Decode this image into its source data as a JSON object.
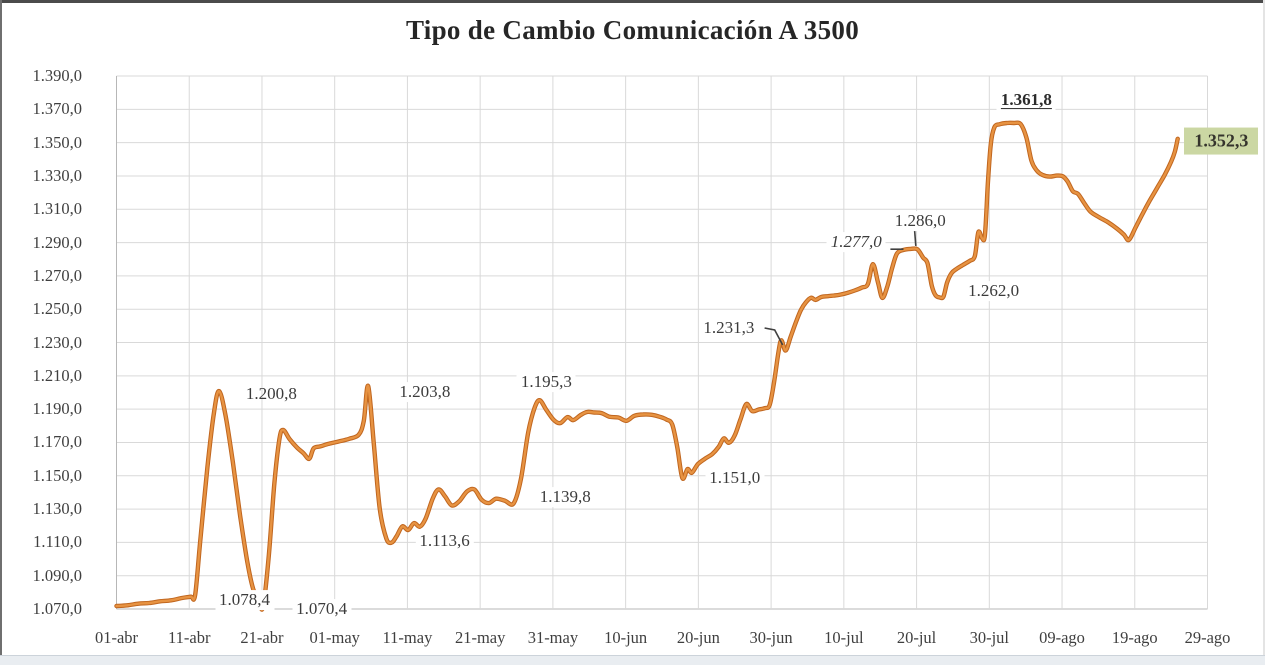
{
  "chart_data": {
    "type": "line",
    "title": "Tipo de Cambio Comunicación A 3500",
    "grid": true,
    "legend": "none",
    "colors": {
      "line": "#D9772E",
      "line_edge": "#C0661F",
      "line_core": "#E79342",
      "grid": "#D9D9D9",
      "axis": "#B7B7B7",
      "tick_text": "#3F3F3F",
      "title_text": "#262626",
      "label_text": "#3B3B3B",
      "leader": "#404040",
      "highlight_box_bg": "#CBD7A3"
    },
    "x_axis": {
      "tick_labels": [
        "01-abr",
        "11-abr",
        "21-abr",
        "01-may",
        "11-may",
        "21-may",
        "31-may",
        "10-jun",
        "20-jun",
        "30-jun",
        "10-jul",
        "20-jul",
        "30-jul",
        "09-ago",
        "19-ago",
        "29-ago"
      ],
      "tick_day_offsets": [
        0,
        10,
        20,
        30,
        40,
        50,
        60,
        70,
        80,
        90,
        100,
        110,
        120,
        130,
        140,
        150
      ],
      "day_min": 0,
      "day_max": 150
    },
    "y_axis": {
      "min": 1070,
      "max": 1390,
      "step": 20,
      "tick_labels": [
        "1.070,0",
        "1.090,0",
        "1.110,0",
        "1.130,0",
        "1.150,0",
        "1.170,0",
        "1.190,0",
        "1.210,0",
        "1.230,0",
        "1.250,0",
        "1.270,0",
        "1.290,0",
        "1.310,0",
        "1.330,0",
        "1.350,0",
        "1.370,0",
        "1.390,0"
      ]
    },
    "series": [
      {
        "smooth": true,
        "points": [
          [
            0,
            1071.8
          ],
          [
            1.5,
            1072.2
          ],
          [
            3,
            1073.2
          ],
          [
            4.5,
            1073.6
          ],
          [
            6,
            1074.6
          ],
          [
            7.5,
            1075.2
          ],
          [
            9,
            1076.6
          ],
          [
            10.2,
            1077.4
          ],
          [
            10.8,
            1078.2
          ],
          [
            11.5,
            1110
          ],
          [
            12.5,
            1155
          ],
          [
            13.4,
            1188
          ],
          [
            14.1,
            1200.8
          ],
          [
            15,
            1186
          ],
          [
            16,
            1158
          ],
          [
            17,
            1126
          ],
          [
            18,
            1098
          ],
          [
            18.8,
            1082
          ],
          [
            19.4,
            1078.4
          ],
          [
            20.1,
            1070.4
          ],
          [
            20.9,
            1100
          ],
          [
            21.7,
            1145
          ],
          [
            22.4,
            1172
          ],
          [
            22.9,
            1177.5
          ],
          [
            23.8,
            1172
          ],
          [
            24.8,
            1167
          ],
          [
            25.7,
            1163.6
          ],
          [
            26.5,
            1160.2
          ],
          [
            27.1,
            1166.4
          ],
          [
            28,
            1167.6
          ],
          [
            29.2,
            1169.2
          ],
          [
            30.6,
            1170.6
          ],
          [
            32,
            1172.2
          ],
          [
            33.3,
            1174.6
          ],
          [
            34,
            1183
          ],
          [
            34.6,
            1203.8
          ],
          [
            35.4,
            1168
          ],
          [
            36.2,
            1130
          ],
          [
            37.1,
            1112.4
          ],
          [
            37.8,
            1109.8
          ],
          [
            38.5,
            1113.6
          ],
          [
            39.3,
            1119.6
          ],
          [
            40.1,
            1117.4
          ],
          [
            40.9,
            1121.6
          ],
          [
            41.7,
            1119.4
          ],
          [
            42.5,
            1124.2
          ],
          [
            43.5,
            1136.6
          ],
          [
            44.3,
            1141.8
          ],
          [
            45.2,
            1137.4
          ],
          [
            46.1,
            1132.2
          ],
          [
            47.1,
            1134.6
          ],
          [
            48.2,
            1140.6
          ],
          [
            49.2,
            1141.8
          ],
          [
            50.2,
            1135.6
          ],
          [
            51.2,
            1133.6
          ],
          [
            52.2,
            1136.2
          ],
          [
            53.4,
            1135.0
          ],
          [
            54.6,
            1133.4
          ],
          [
            55.6,
            1148
          ],
          [
            56.6,
            1176
          ],
          [
            57.5,
            1191
          ],
          [
            58.2,
            1195.3
          ],
          [
            59.1,
            1189.5
          ],
          [
            60.1,
            1183.6
          ],
          [
            61.0,
            1181.6
          ],
          [
            62.0,
            1185.2
          ],
          [
            62.8,
            1183.4
          ],
          [
            63.8,
            1186.4
          ],
          [
            64.7,
            1188.3
          ],
          [
            65.7,
            1188.0
          ],
          [
            66.7,
            1187.6
          ],
          [
            67.8,
            1185.4
          ],
          [
            69.0,
            1185.0
          ],
          [
            70.1,
            1183.0
          ],
          [
            71.2,
            1186.0
          ],
          [
            72.4,
            1186.8
          ],
          [
            73.6,
            1186.6
          ],
          [
            74.7,
            1185.4
          ],
          [
            75.6,
            1183.8
          ],
          [
            76.4,
            1180.8
          ],
          [
            77.1,
            1167
          ],
          [
            77.8,
            1148.6
          ],
          [
            78.5,
            1154.0
          ],
          [
            79.1,
            1151.8
          ],
          [
            79.9,
            1156.8
          ],
          [
            80.9,
            1160.2
          ],
          [
            81.9,
            1163.0
          ],
          [
            82.8,
            1167.4
          ],
          [
            83.5,
            1172.4
          ],
          [
            84.2,
            1169.8
          ],
          [
            85.0,
            1174.2
          ],
          [
            85.8,
            1184
          ],
          [
            86.6,
            1193.0
          ],
          [
            87.4,
            1188.8
          ],
          [
            88.3,
            1189.8
          ],
          [
            89.2,
            1190.6
          ],
          [
            89.8,
            1192.4
          ],
          [
            90.4,
            1206
          ],
          [
            91.0,
            1224
          ],
          [
            91.4,
            1231.3
          ],
          [
            92.0,
            1225.2
          ],
          [
            92.7,
            1233.5
          ],
          [
            93.4,
            1242
          ],
          [
            94.1,
            1249.5
          ],
          [
            94.8,
            1254.2
          ],
          [
            95.5,
            1256.9
          ],
          [
            96.1,
            1255.6
          ],
          [
            96.9,
            1257.3
          ],
          [
            97.8,
            1257.8
          ],
          [
            98.7,
            1258.2
          ],
          [
            99.6,
            1258.8
          ],
          [
            100.5,
            1259.8
          ],
          [
            101.5,
            1261.2
          ],
          [
            102.5,
            1263.0
          ],
          [
            103.3,
            1265.0
          ],
          [
            104.0,
            1277.0
          ],
          [
            104.7,
            1266
          ],
          [
            105.3,
            1256.8
          ],
          [
            106.0,
            1264
          ],
          [
            106.6,
            1274
          ],
          [
            107.3,
            1283.4
          ],
          [
            108.2,
            1285.6
          ],
          [
            109.2,
            1286.2
          ],
          [
            110.1,
            1286.0
          ],
          [
            110.9,
            1281
          ],
          [
            111.5,
            1277.6
          ],
          [
            112.1,
            1264
          ],
          [
            112.6,
            1258.4
          ],
          [
            113.2,
            1257.0
          ],
          [
            113.7,
            1257.6
          ],
          [
            114.2,
            1266
          ],
          [
            114.8,
            1271.6
          ],
          [
            115.5,
            1274.2
          ],
          [
            116.4,
            1276.6
          ],
          [
            117.3,
            1279.0
          ],
          [
            118.0,
            1281.8
          ],
          [
            118.5,
            1296.3
          ],
          [
            119.0,
            1292.6
          ],
          [
            119.4,
            1294.5
          ],
          [
            119.8,
            1325
          ],
          [
            120.2,
            1349
          ],
          [
            120.7,
            1359.2
          ],
          [
            121.4,
            1361.0
          ],
          [
            122.4,
            1361.8
          ],
          [
            123.4,
            1361.8
          ],
          [
            124.3,
            1361.2
          ],
          [
            125.1,
            1353
          ],
          [
            125.8,
            1339
          ],
          [
            126.5,
            1333.4
          ],
          [
            127.3,
            1330.6
          ],
          [
            128.3,
            1329.6
          ],
          [
            129.3,
            1330.2
          ],
          [
            130.1,
            1329.8
          ],
          [
            130.8,
            1326.4
          ],
          [
            131.5,
            1320.8
          ],
          [
            132.2,
            1319.2
          ],
          [
            133.0,
            1314.0
          ],
          [
            133.9,
            1308.6
          ],
          [
            135.1,
            1305.2
          ],
          [
            136.4,
            1302.0
          ],
          [
            137.6,
            1298.2
          ],
          [
            138.5,
            1294.8
          ],
          [
            139.2,
            1291.6
          ],
          [
            140.1,
            1299.0
          ],
          [
            141.1,
            1307.5
          ],
          [
            142.1,
            1315.5
          ],
          [
            143.1,
            1323.0
          ],
          [
            144.1,
            1330.5
          ],
          [
            145.0,
            1338.5
          ],
          [
            145.5,
            1344.5
          ],
          [
            145.9,
            1352.3
          ]
        ]
      }
    ],
    "data_labels": [
      {
        "text": "1.200,8",
        "pos": [
          21.3,
          1199.0
        ],
        "style": "plain",
        "whitebg": false
      },
      {
        "text": "1.078,4",
        "pos": [
          17.6,
          1075.4
        ],
        "style": "plain",
        "whitebg": true
      },
      {
        "text": "1.070,4",
        "pos": [
          28.2,
          1070.0
        ],
        "style": "plain",
        "whitebg": true
      },
      {
        "text": "1.203,8",
        "pos": [
          42.4,
          1200.3
        ],
        "style": "plain",
        "whitebg": true
      },
      {
        "text": "1.113,6",
        "pos": [
          45.1,
          1110.8
        ],
        "style": "plain",
        "whitebg": true
      },
      {
        "text": "1.139,8",
        "pos": [
          61.7,
          1137.3
        ],
        "style": "plain",
        "whitebg": true
      },
      {
        "text": "1.195,3",
        "pos": [
          59.1,
          1206.3
        ],
        "style": "plain",
        "whitebg": true
      },
      {
        "text": "1.151,0",
        "pos": [
          85.0,
          1148.6
        ],
        "style": "plain",
        "whitebg": true
      },
      {
        "text": "1.231,3",
        "pos": [
          84.2,
          1238.7
        ],
        "style": "plain",
        "whitebg": true
      },
      {
        "text": "1.277,0",
        "pos": [
          101.7,
          1290.3
        ],
        "style": "italic",
        "whitebg": true
      },
      {
        "text": "1.286,0",
        "pos": [
          110.5,
          1302.9
        ],
        "style": "plain",
        "whitebg": true
      },
      {
        "text": "1.262,0",
        "pos": [
          120.6,
          1260.9
        ],
        "style": "plain",
        "whitebg": true
      },
      {
        "text": "1.361,8",
        "pos": [
          125.1,
          1375.6
        ],
        "style": "bold-underline",
        "whitebg": true
      },
      {
        "text": "1.352,3",
        "pos": [
          151.9,
          1351.0
        ],
        "style": "bold-box",
        "whitebg": false
      }
    ],
    "leader_lines": [
      {
        "for": "1.231,3",
        "points": [
          [
            89.1,
            1238.7
          ],
          [
            90.5,
            1237.5
          ],
          [
            91.6,
            1228.5
          ]
        ]
      },
      {
        "for": "1.277,0",
        "points": [
          [
            106.4,
            1286.0
          ],
          [
            108.2,
            1286.0
          ]
        ]
      },
      {
        "for": "1.286,0",
        "points": [
          [
            109.7,
            1299.0
          ],
          [
            109.9,
            1288.0
          ]
        ]
      }
    ]
  }
}
